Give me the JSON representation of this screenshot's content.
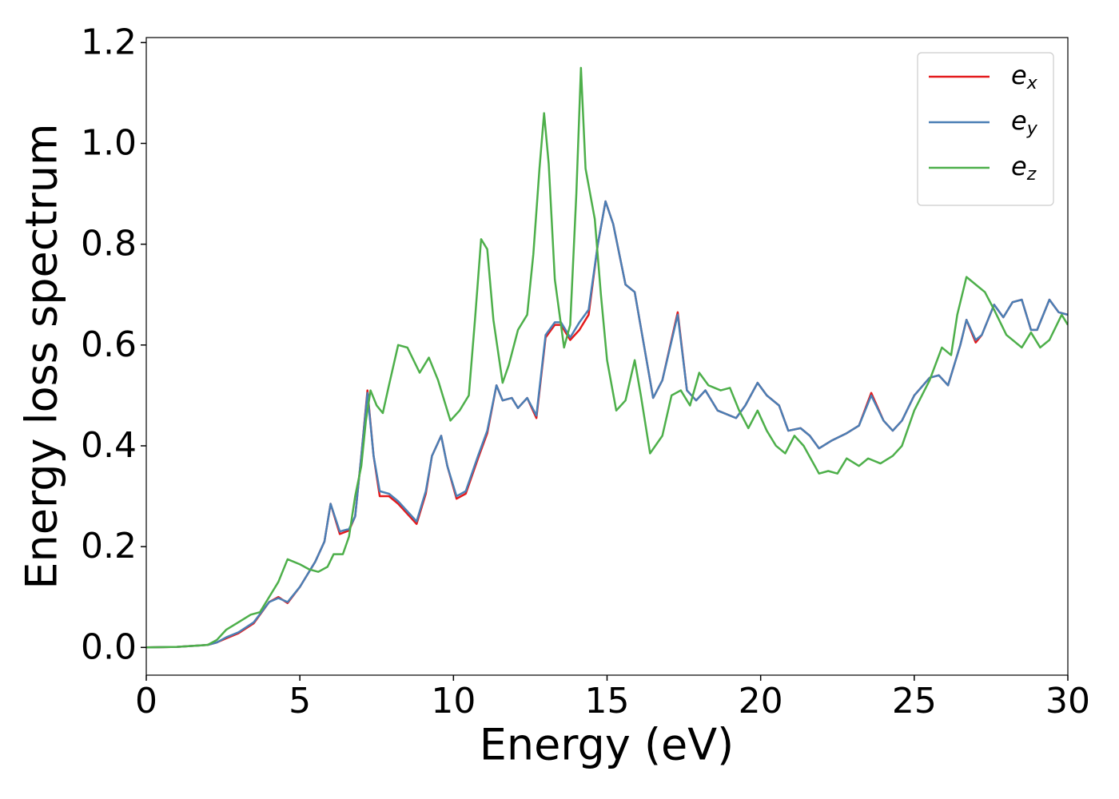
{
  "chart_data": {
    "type": "line",
    "xlabel": "Energy (eV)",
    "ylabel": "Energy loss spectrum",
    "xlim": [
      0,
      30
    ],
    "ylim": [
      -0.055,
      1.21
    ],
    "xticks": [
      0,
      5,
      10,
      15,
      20,
      25,
      30
    ],
    "yticks": [
      {
        "value": 0,
        "label": "0.0"
      },
      {
        "value": 0.2,
        "label": "0.2"
      },
      {
        "value": 0.4,
        "label": "0.4"
      },
      {
        "value": 0.6,
        "label": "0.6"
      },
      {
        "value": 0.8,
        "label": "0.8"
      },
      {
        "value": 1.0,
        "label": "1.0"
      },
      {
        "value": 1.2,
        "label": "1.2"
      }
    ],
    "legend": "upper right",
    "grid": false,
    "series": [
      {
        "name": "ex",
        "color": "#e41a1c",
        "x": [
          0,
          1,
          2,
          2.3,
          2.6,
          3,
          3.5,
          4,
          4.3,
          4.6,
          5,
          5.5,
          5.8,
          6,
          6.3,
          6.6,
          6.8,
          7,
          7.2,
          7.4,
          7.6,
          7.9,
          8.2,
          8.5,
          8.8,
          9.1,
          9.3,
          9.6,
          9.8,
          10.1,
          10.4,
          10.8,
          11.1,
          11.4,
          11.6,
          11.9,
          12.1,
          12.4,
          12.7,
          13,
          13.3,
          13.5,
          13.8,
          14.1,
          14.4,
          14.7,
          14.95,
          15.2,
          15.6,
          15.9,
          16.2,
          16.5,
          16.8,
          17.3,
          17.6,
          17.9,
          18.2,
          18.6,
          19.2,
          19.5,
          19.9,
          20.2,
          20.6,
          20.9,
          21.3,
          21.6,
          21.9,
          22.3,
          22.8,
          23.2,
          23.6,
          24,
          24.3,
          24.6,
          25,
          25.5,
          25.8,
          26.1,
          26.5,
          26.7,
          27,
          27.2,
          27.6,
          27.9,
          28.2,
          28.5,
          28.8,
          29,
          29.4,
          29.7,
          30
        ],
        "values": [
          0,
          0.001,
          0.005,
          0.01,
          0.018,
          0.028,
          0.048,
          0.09,
          0.1,
          0.088,
          0.12,
          0.17,
          0.21,
          0.285,
          0.225,
          0.232,
          0.26,
          0.38,
          0.51,
          0.38,
          0.3,
          0.3,
          0.285,
          0.265,
          0.245,
          0.305,
          0.38,
          0.42,
          0.36,
          0.295,
          0.305,
          0.375,
          0.425,
          0.52,
          0.49,
          0.495,
          0.475,
          0.495,
          0.455,
          0.615,
          0.64,
          0.64,
          0.61,
          0.63,
          0.66,
          0.8,
          0.885,
          0.84,
          0.72,
          0.705,
          0.6,
          0.495,
          0.53,
          0.665,
          0.51,
          0.49,
          0.51,
          0.47,
          0.455,
          0.48,
          0.525,
          0.5,
          0.48,
          0.43,
          0.435,
          0.42,
          0.395,
          0.41,
          0.425,
          0.44,
          0.505,
          0.45,
          0.43,
          0.45,
          0.5,
          0.535,
          0.54,
          0.52,
          0.6,
          0.65,
          0.605,
          0.62,
          0.68,
          0.655,
          0.685,
          0.69,
          0.63,
          0.63,
          0.69,
          0.665,
          0.66
        ]
      },
      {
        "name": "ey",
        "color": "#4a7fb5",
        "x": [
          0,
          1,
          2,
          2.3,
          2.6,
          3,
          3.5,
          4,
          4.3,
          4.6,
          5,
          5.5,
          5.8,
          6,
          6.3,
          6.6,
          6.8,
          7,
          7.2,
          7.4,
          7.6,
          7.9,
          8.2,
          8.5,
          8.8,
          9.1,
          9.3,
          9.6,
          9.8,
          10.1,
          10.4,
          10.8,
          11.1,
          11.4,
          11.6,
          11.9,
          12.1,
          12.4,
          12.7,
          13,
          13.3,
          13.5,
          13.8,
          14.1,
          14.4,
          14.7,
          14.95,
          15.2,
          15.6,
          15.9,
          16.2,
          16.5,
          16.8,
          17.3,
          17.6,
          17.9,
          18.2,
          18.6,
          19.2,
          19.5,
          19.9,
          20.2,
          20.6,
          20.9,
          21.3,
          21.6,
          21.9,
          22.3,
          22.8,
          23.2,
          23.6,
          24,
          24.3,
          24.6,
          25,
          25.5,
          25.8,
          26.1,
          26.5,
          26.7,
          27,
          27.2,
          27.6,
          27.9,
          28.2,
          28.5,
          28.8,
          29,
          29.4,
          29.7,
          30
        ],
        "values": [
          0,
          0.001,
          0.005,
          0.01,
          0.02,
          0.03,
          0.05,
          0.09,
          0.098,
          0.09,
          0.12,
          0.17,
          0.21,
          0.285,
          0.23,
          0.235,
          0.26,
          0.38,
          0.505,
          0.38,
          0.31,
          0.305,
          0.29,
          0.27,
          0.25,
          0.31,
          0.38,
          0.42,
          0.36,
          0.3,
          0.31,
          0.38,
          0.43,
          0.52,
          0.49,
          0.495,
          0.475,
          0.495,
          0.46,
          0.62,
          0.645,
          0.645,
          0.615,
          0.645,
          0.67,
          0.8,
          0.885,
          0.84,
          0.72,
          0.705,
          0.6,
          0.495,
          0.53,
          0.66,
          0.51,
          0.49,
          0.51,
          0.47,
          0.455,
          0.48,
          0.525,
          0.5,
          0.48,
          0.43,
          0.435,
          0.42,
          0.395,
          0.41,
          0.425,
          0.44,
          0.5,
          0.45,
          0.43,
          0.45,
          0.5,
          0.535,
          0.54,
          0.52,
          0.6,
          0.65,
          0.61,
          0.62,
          0.68,
          0.655,
          0.685,
          0.69,
          0.63,
          0.63,
          0.69,
          0.665,
          0.66
        ]
      },
      {
        "name": "ez",
        "color": "#4daf4a",
        "x": [
          0,
          1,
          2,
          2.3,
          2.6,
          3,
          3.4,
          3.7,
          4,
          4.3,
          4.6,
          5,
          5.3,
          5.6,
          5.9,
          6.1,
          6.4,
          6.6,
          6.8,
          7,
          7.15,
          7.3,
          7.5,
          7.7,
          7.9,
          8.2,
          8.5,
          8.9,
          9.2,
          9.5,
          9.7,
          9.9,
          10.2,
          10.5,
          10.7,
          10.9,
          11.1,
          11.3,
          11.6,
          11.8,
          12.1,
          12.4,
          12.6,
          12.8,
          12.95,
          13.1,
          13.3,
          13.6,
          13.8,
          14,
          14.15,
          14.3,
          14.6,
          14.8,
          15,
          15.3,
          15.6,
          15.9,
          16.1,
          16.4,
          16.8,
          17.1,
          17.4,
          17.7,
          18,
          18.3,
          18.7,
          19,
          19.3,
          19.6,
          19.9,
          20.2,
          20.5,
          20.8,
          21.1,
          21.4,
          21.9,
          22.2,
          22.5,
          22.8,
          23.2,
          23.5,
          23.9,
          24.3,
          24.6,
          25,
          25.5,
          25.9,
          26.2,
          26.4,
          26.7,
          27,
          27.3,
          27.6,
          28,
          28.5,
          28.8,
          29.1,
          29.4,
          29.8,
          30
        ],
        "values": [
          0,
          0.001,
          0.005,
          0.015,
          0.035,
          0.05,
          0.065,
          0.07,
          0.1,
          0.13,
          0.175,
          0.165,
          0.155,
          0.15,
          0.16,
          0.185,
          0.185,
          0.22,
          0.3,
          0.36,
          0.45,
          0.51,
          0.48,
          0.465,
          0.52,
          0.6,
          0.595,
          0.545,
          0.575,
          0.53,
          0.49,
          0.45,
          0.47,
          0.5,
          0.65,
          0.81,
          0.79,
          0.65,
          0.525,
          0.56,
          0.63,
          0.66,
          0.78,
          0.95,
          1.06,
          0.96,
          0.73,
          0.595,
          0.64,
          0.9,
          1.15,
          0.95,
          0.85,
          0.7,
          0.57,
          0.47,
          0.49,
          0.57,
          0.5,
          0.385,
          0.42,
          0.5,
          0.51,
          0.48,
          0.545,
          0.52,
          0.51,
          0.515,
          0.47,
          0.435,
          0.47,
          0.43,
          0.4,
          0.385,
          0.42,
          0.4,
          0.345,
          0.35,
          0.345,
          0.375,
          0.36,
          0.375,
          0.365,
          0.38,
          0.4,
          0.47,
          0.53,
          0.595,
          0.58,
          0.66,
          0.735,
          0.72,
          0.705,
          0.67,
          0.62,
          0.595,
          0.625,
          0.595,
          0.61,
          0.66,
          0.64
        ]
      }
    ]
  }
}
